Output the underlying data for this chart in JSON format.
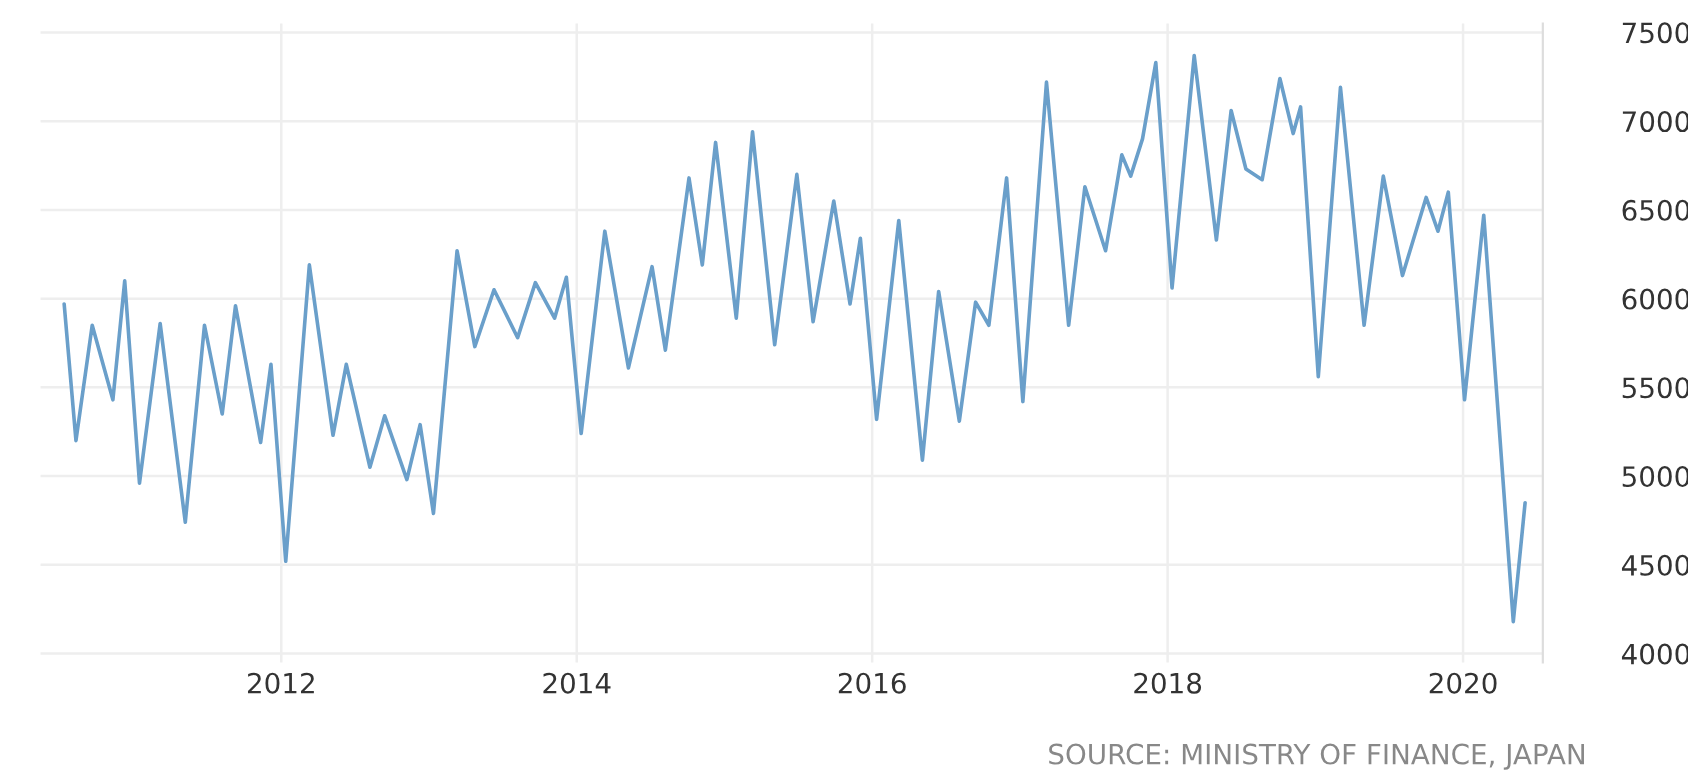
{
  "chart_data": {
    "type": "line",
    "x": [
      2010.53,
      2010.61,
      2010.72,
      2010.86,
      2010.94,
      2011.04,
      2011.18,
      2011.35,
      2011.48,
      2011.6,
      2011.69,
      2011.86,
      2011.93,
      2012.03,
      2012.19,
      2012.35,
      2012.44,
      2012.6,
      2012.7,
      2012.85,
      2012.94,
      2013.03,
      2013.19,
      2013.31,
      2013.44,
      2013.6,
      2013.72,
      2013.85,
      2013.93,
      2014.03,
      2014.19,
      2014.35,
      2014.51,
      2014.6,
      2014.76,
      2014.85,
      2014.94,
      2015.08,
      2015.19,
      2015.34,
      2015.49,
      2015.6,
      2015.74,
      2015.85,
      2015.92,
      2016.03,
      2016.18,
      2016.34,
      2016.45,
      2016.59,
      2016.7,
      2016.79,
      2016.91,
      2017.02,
      2017.18,
      2017.33,
      2017.44,
      2017.58,
      2017.69,
      2017.75,
      2017.83,
      2017.92,
      2018.03,
      2018.18,
      2018.33,
      2018.43,
      2018.53,
      2018.64,
      2018.76,
      2018.85,
      2018.9,
      2019.02,
      2019.17,
      2019.33,
      2019.46,
      2019.59,
      2019.75,
      2019.83,
      2019.9,
      2020.01,
      2020.14,
      2020.34,
      2020.42
    ],
    "series": [
      {
        "color": "#6a9fca",
        "values": [
          5970,
          5200,
          5850,
          5430,
          6100,
          4960,
          5860,
          4740,
          5850,
          5350,
          5960,
          5190,
          5630,
          4520,
          6190,
          5230,
          5630,
          5050,
          5340,
          4980,
          5290,
          4790,
          6270,
          5730,
          6050,
          5780,
          6090,
          5890,
          6120,
          5240,
          6380,
          5610,
          6180,
          5710,
          6680,
          6190,
          6880,
          5890,
          6940,
          5740,
          6700,
          5870,
          6550,
          5970,
          6340,
          5320,
          6440,
          5090,
          6040,
          5310,
          5980,
          5850,
          6680,
          5420,
          7220,
          5850,
          6630,
          6270,
          6810,
          6690,
          6900,
          7330,
          6060,
          7370,
          6330,
          7060,
          6730,
          6670,
          7240,
          6930,
          7080,
          5560,
          7190,
          5850,
          6690,
          6130,
          6570,
          6380,
          6600,
          5430,
          6470,
          4180,
          4850
        ]
      }
    ],
    "xlim": [
      2010.37,
      2020.54
    ],
    "xticks": [
      2012,
      2014,
      2016,
      2018,
      2020
    ],
    "ylim": [
      3950,
      7550
    ],
    "yticks": [
      4000,
      4500,
      5000,
      5500,
      6000,
      6500,
      7000,
      7500
    ],
    "grid": true,
    "line_style": "solid",
    "marker": "none",
    "annotations": [
      "SOURCE: MINISTRY OF FINANCE, JAPAN"
    ]
  }
}
